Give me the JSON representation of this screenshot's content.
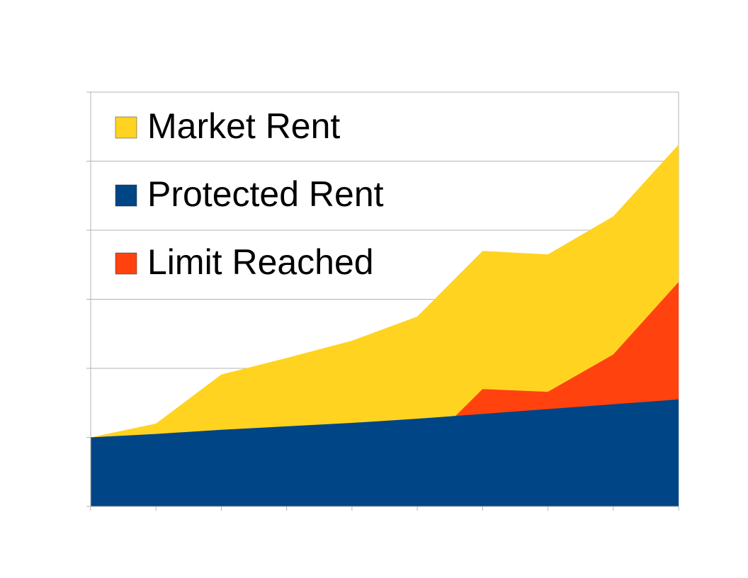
{
  "chart_data": {
    "type": "area",
    "categories": [
      null,
      null,
      null,
      null,
      null,
      null,
      null,
      null,
      null,
      null
    ],
    "series": [
      {
        "name": "Market Rent",
        "color": "#ffd320",
        "values": [
          1.0,
          1.2,
          1.91,
          2.15,
          2.4,
          2.75,
          3.7,
          3.65,
          4.2,
          5.24
        ]
      },
      {
        "name": "Protected Rent",
        "color": "#004586",
        "values": [
          1.0,
          1.05,
          1.11,
          1.16,
          1.21,
          1.27,
          1.34,
          1.41,
          1.48,
          1.55
        ]
      },
      {
        "name": "Limit Reached",
        "color": "#ff420e",
        "values": [
          null,
          null,
          null,
          null,
          null,
          0.76,
          1.7,
          1.66,
          2.2,
          3.25
        ]
      }
    ],
    "ylim": [
      0,
      6
    ],
    "yticks": [
      0,
      1,
      2,
      3,
      4,
      5,
      6
    ],
    "grid": true,
    "legend": "top-left"
  }
}
